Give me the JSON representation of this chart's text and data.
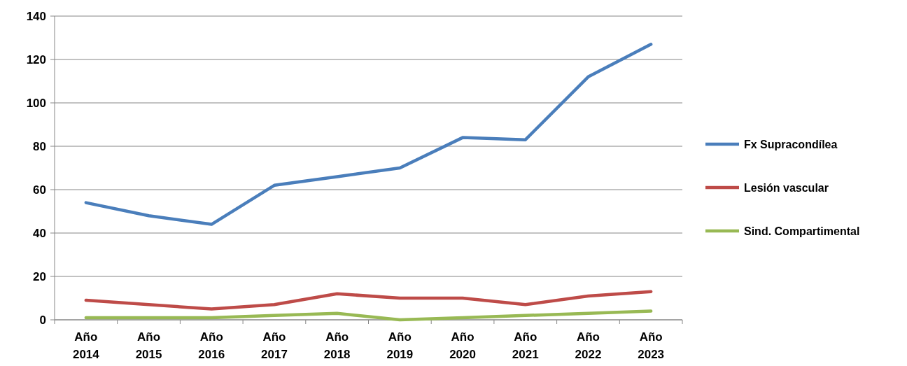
{
  "chart_data": {
    "type": "line",
    "categories": [
      "Año 2014",
      "Año 2015",
      "Año 2016",
      "Año 2017",
      "Año 2018",
      "Año 2019",
      "Año 2020",
      "Año 2021",
      "Año 2022",
      "Año 2023"
    ],
    "series": [
      {
        "name": "Fx Supracondílea",
        "color": "#4a7ebb",
        "values": [
          54,
          48,
          44,
          62,
          66,
          70,
          84,
          83,
          112,
          127
        ]
      },
      {
        "name": "Lesión vascular",
        "color": "#be4b48",
        "values": [
          9,
          7,
          5,
          7,
          12,
          10,
          10,
          7,
          11,
          13
        ]
      },
      {
        "name": "Sind. Compartimental",
        "color": "#98b954",
        "values": [
          1,
          1,
          1,
          2,
          3,
          0,
          1,
          2,
          3,
          4
        ]
      }
    ],
    "ylim": [
      0,
      140
    ],
    "yticks": [
      0,
      20,
      40,
      60,
      80,
      100,
      120,
      140
    ],
    "grid": "y",
    "legend": "right",
    "marker": "none",
    "line_style": "solid"
  }
}
